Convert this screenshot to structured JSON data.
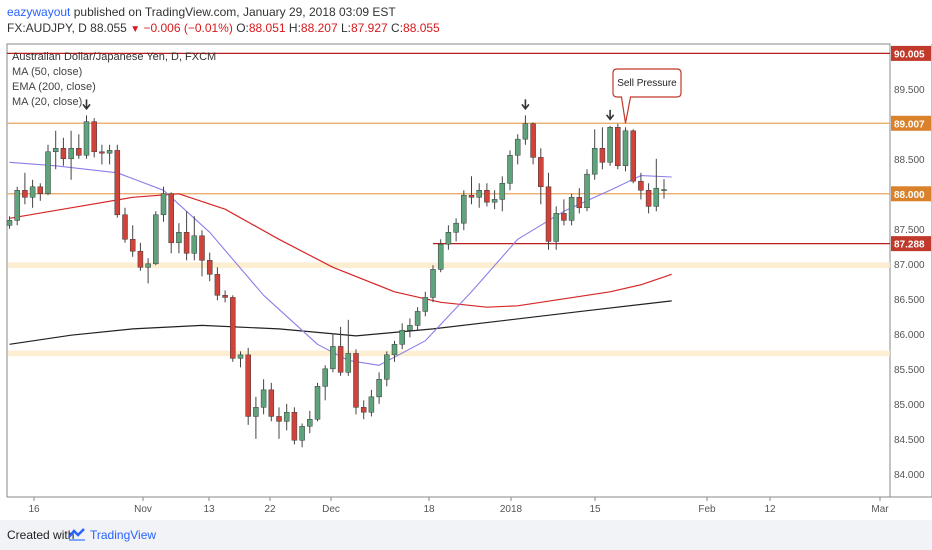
{
  "header": {
    "author": "eazywayout",
    "published": "published on TradingView.com, January 29, 2018 03:09 EST",
    "symbol": "FX:AUDJPY, D",
    "last": "88.055",
    "change": "−0.006 (−0.01%)",
    "o_label": "O:",
    "o_value": "88.051",
    "h_label": "H:",
    "h_value": "88.207",
    "l_label": "L:",
    "l_value": "87.927",
    "c_label": "C:",
    "c_value": "88.055"
  },
  "footer": {
    "created": "Created with",
    "brand": "TradingView"
  },
  "colors": {
    "up": "#5fa37c",
    "down": "#d0433b",
    "wick": "#444444",
    "ma50": "#d62728",
    "ema200": "#222222",
    "ma20": "#8c7ee8",
    "resistance": "#e8a55c",
    "level_90": "#b81c1c",
    "level_87": "#b81c1c",
    "zone": "#fdebc9",
    "label_red": "#c0392b",
    "label_orange": "#d9822b",
    "axis_text": "#555555"
  },
  "chart_data": {
    "type": "candlestick",
    "title": "Australian Dollar/Japanese Yen, D, FXCM",
    "indicators": [
      "MA (50, close)",
      "EMA (200, close)",
      "MA (20, close)"
    ],
    "x_ticks": [
      "16",
      "Nov",
      "13",
      "22",
      "Dec",
      "18",
      "2018",
      "15",
      "Feb",
      "12",
      "Mar"
    ],
    "y_ticks": [
      "84.000",
      "84.500",
      "85.000",
      "85.500",
      "86.000",
      "86.500",
      "87.000",
      "87.500",
      "88.000",
      "88.500",
      "89.000",
      "89.500",
      "90.000"
    ],
    "ylim": [
      83.6,
      90.5
    ],
    "price_labels": [
      {
        "text": "90.005",
        "value": 90.005,
        "style": "red"
      },
      {
        "text": "89.007",
        "value": 89.007,
        "style": "orange"
      },
      {
        "text": "88.000",
        "value": 88.0,
        "style": "orange"
      },
      {
        "text": "87.288",
        "value": 87.288,
        "style": "red"
      }
    ],
    "horizontal_levels": [
      {
        "value": 90.005,
        "kind": "level_90",
        "extent": "full"
      },
      {
        "value": 89.007,
        "kind": "resistance",
        "extent": "full"
      },
      {
        "value": 88.0,
        "kind": "resistance",
        "extent": "full"
      },
      {
        "value": 87.288,
        "kind": "level_87",
        "extent": "partial"
      }
    ],
    "zones": [
      {
        "from": 86.94,
        "to": 87.02
      },
      {
        "from": 85.68,
        "to": 85.76
      }
    ],
    "annotation": "Sell Pressure",
    "annotation_candle": 80,
    "marker_candles": [
      10,
      67,
      78
    ],
    "candles": [
      [
        87.55,
        87.68,
        87.5,
        87.62
      ],
      [
        87.62,
        88.1,
        87.55,
        88.05
      ],
      [
        88.05,
        88.3,
        87.85,
        87.95
      ],
      [
        87.95,
        88.2,
        87.8,
        88.1
      ],
      [
        88.1,
        88.15,
        87.9,
        88.0
      ],
      [
        88.0,
        88.7,
        87.98,
        88.6
      ],
      [
        88.6,
        88.9,
        88.35,
        88.65
      ],
      [
        88.65,
        88.8,
        88.4,
        88.5
      ],
      [
        88.5,
        88.9,
        88.2,
        88.65
      ],
      [
        88.65,
        88.85,
        88.5,
        88.55
      ],
      [
        88.55,
        89.12,
        88.5,
        89.03
      ],
      [
        89.03,
        89.08,
        88.52,
        88.6
      ],
      [
        88.6,
        88.7,
        88.42,
        88.58
      ],
      [
        88.58,
        88.7,
        88.42,
        88.62
      ],
      [
        88.62,
        88.7,
        87.66,
        87.7
      ],
      [
        87.7,
        87.8,
        87.3,
        87.35
      ],
      [
        87.35,
        87.55,
        87.1,
        87.18
      ],
      [
        87.18,
        87.3,
        86.9,
        86.95
      ],
      [
        86.95,
        87.08,
        86.72,
        87.0
      ],
      [
        87.0,
        87.75,
        86.98,
        87.7
      ],
      [
        87.7,
        88.1,
        87.6,
        88.0
      ],
      [
        88.0,
        88.02,
        87.15,
        87.3
      ],
      [
        87.3,
        87.58,
        87.15,
        87.45
      ],
      [
        87.45,
        87.75,
        87.05,
        87.15
      ],
      [
        87.15,
        87.68,
        87.05,
        87.4
      ],
      [
        87.4,
        87.48,
        86.82,
        87.05
      ],
      [
        87.05,
        87.16,
        86.75,
        86.85
      ],
      [
        86.85,
        86.95,
        86.48,
        86.55
      ],
      [
        86.55,
        86.62,
        86.45,
        86.52
      ],
      [
        86.52,
        86.55,
        85.6,
        85.65
      ],
      [
        85.65,
        85.75,
        85.52,
        85.7
      ],
      [
        85.7,
        85.8,
        84.7,
        84.82
      ],
      [
        84.82,
        85.1,
        84.5,
        84.95
      ],
      [
        84.95,
        85.35,
        84.85,
        85.2
      ],
      [
        85.2,
        85.3,
        84.75,
        84.82
      ],
      [
        84.82,
        84.95,
        84.5,
        84.75
      ],
      [
        84.75,
        85.0,
        84.62,
        84.88
      ],
      [
        84.88,
        84.95,
        84.42,
        84.48
      ],
      [
        84.48,
        84.72,
        84.38,
        84.68
      ],
      [
        84.68,
        84.9,
        84.58,
        84.78
      ],
      [
        84.78,
        85.3,
        84.75,
        85.25
      ],
      [
        85.25,
        85.55,
        85.05,
        85.5
      ],
      [
        85.5,
        86.0,
        85.45,
        85.82
      ],
      [
        85.82,
        86.1,
        85.4,
        85.45
      ],
      [
        85.45,
        86.2,
        85.4,
        85.72
      ],
      [
        85.72,
        85.78,
        84.85,
        84.95
      ],
      [
        84.95,
        85.05,
        84.78,
        84.88
      ],
      [
        84.88,
        85.2,
        84.82,
        85.1
      ],
      [
        85.1,
        85.45,
        85.0,
        85.35
      ],
      [
        85.35,
        85.75,
        85.25,
        85.7
      ],
      [
        85.7,
        85.9,
        85.6,
        85.85
      ],
      [
        85.85,
        86.15,
        85.78,
        86.05
      ],
      [
        86.05,
        86.22,
        85.95,
        86.12
      ],
      [
        86.12,
        86.38,
        86.05,
        86.32
      ],
      [
        86.32,
        86.6,
        86.25,
        86.52
      ],
      [
        86.52,
        86.98,
        86.45,
        86.92
      ],
      [
        86.92,
        87.35,
        86.88,
        87.28
      ],
      [
        87.28,
        87.55,
        87.2,
        87.45
      ],
      [
        87.45,
        87.65,
        87.32,
        87.58
      ],
      [
        87.58,
        88.05,
        87.48,
        87.98
      ],
      [
        87.98,
        88.25,
        87.85,
        87.95
      ],
      [
        87.95,
        88.15,
        87.8,
        88.05
      ],
      [
        88.05,
        88.15,
        87.82,
        87.88
      ],
      [
        87.88,
        88.05,
        87.78,
        87.92
      ],
      [
        87.92,
        88.25,
        87.75,
        88.15
      ],
      [
        88.15,
        88.62,
        88.05,
        88.55
      ],
      [
        88.55,
        88.85,
        88.42,
        88.78
      ],
      [
        88.78,
        89.12,
        88.7,
        89.0
      ],
      [
        89.0,
        89.02,
        88.42,
        88.52
      ],
      [
        88.52,
        88.65,
        87.85,
        88.1
      ],
      [
        88.1,
        88.3,
        87.2,
        87.32
      ],
      [
        87.32,
        87.82,
        87.2,
        87.72
      ],
      [
        87.72,
        87.92,
        87.55,
        87.62
      ],
      [
        87.62,
        88.0,
        87.55,
        87.95
      ],
      [
        87.95,
        88.08,
        87.72,
        87.8
      ],
      [
        87.8,
        88.35,
        87.75,
        88.28
      ],
      [
        88.28,
        88.92,
        88.2,
        88.65
      ],
      [
        88.65,
        88.95,
        88.35,
        88.45
      ],
      [
        88.45,
        88.97,
        88.4,
        88.95
      ],
      [
        88.95,
        89.0,
        88.35,
        88.4
      ],
      [
        88.4,
        88.95,
        88.32,
        88.9
      ],
      [
        88.9,
        88.92,
        88.15,
        88.18
      ],
      [
        88.18,
        88.3,
        87.92,
        88.05
      ],
      [
        88.05,
        88.15,
        87.72,
        87.82
      ],
      [
        87.82,
        88.5,
        87.75,
        88.08
      ],
      [
        88.05,
        88.21,
        87.93,
        88.06
      ]
    ],
    "ma20": [
      [
        0,
        88.45
      ],
      [
        6,
        88.4
      ],
      [
        14,
        88.3
      ],
      [
        20,
        88.05
      ],
      [
        26,
        87.45
      ],
      [
        33,
        86.55
      ],
      [
        40,
        85.85
      ],
      [
        44,
        85.62
      ],
      [
        48,
        85.55
      ],
      [
        54,
        85.9
      ],
      [
        60,
        86.6
      ],
      [
        66,
        87.35
      ],
      [
        72,
        87.75
      ],
      [
        78,
        88.05
      ],
      [
        82,
        88.26
      ],
      [
        86,
        88.24
      ]
    ],
    "ma50": [
      [
        0,
        87.65
      ],
      [
        8,
        87.8
      ],
      [
        16,
        87.95
      ],
      [
        22,
        88.0
      ],
      [
        28,
        87.78
      ],
      [
        35,
        87.35
      ],
      [
        42,
        86.95
      ],
      [
        50,
        86.6
      ],
      [
        56,
        86.45
      ],
      [
        62,
        86.38
      ],
      [
        66,
        86.4
      ],
      [
        72,
        86.5
      ],
      [
        78,
        86.6
      ],
      [
        82,
        86.7
      ],
      [
        86,
        86.85
      ]
    ],
    "ema200": [
      [
        0,
        85.85
      ],
      [
        8,
        85.98
      ],
      [
        16,
        86.07
      ],
      [
        25,
        86.12
      ],
      [
        35,
        86.07
      ],
      [
        45,
        85.97
      ],
      [
        55,
        86.07
      ],
      [
        65,
        86.2
      ],
      [
        75,
        86.33
      ],
      [
        86,
        86.47
      ]
    ]
  }
}
